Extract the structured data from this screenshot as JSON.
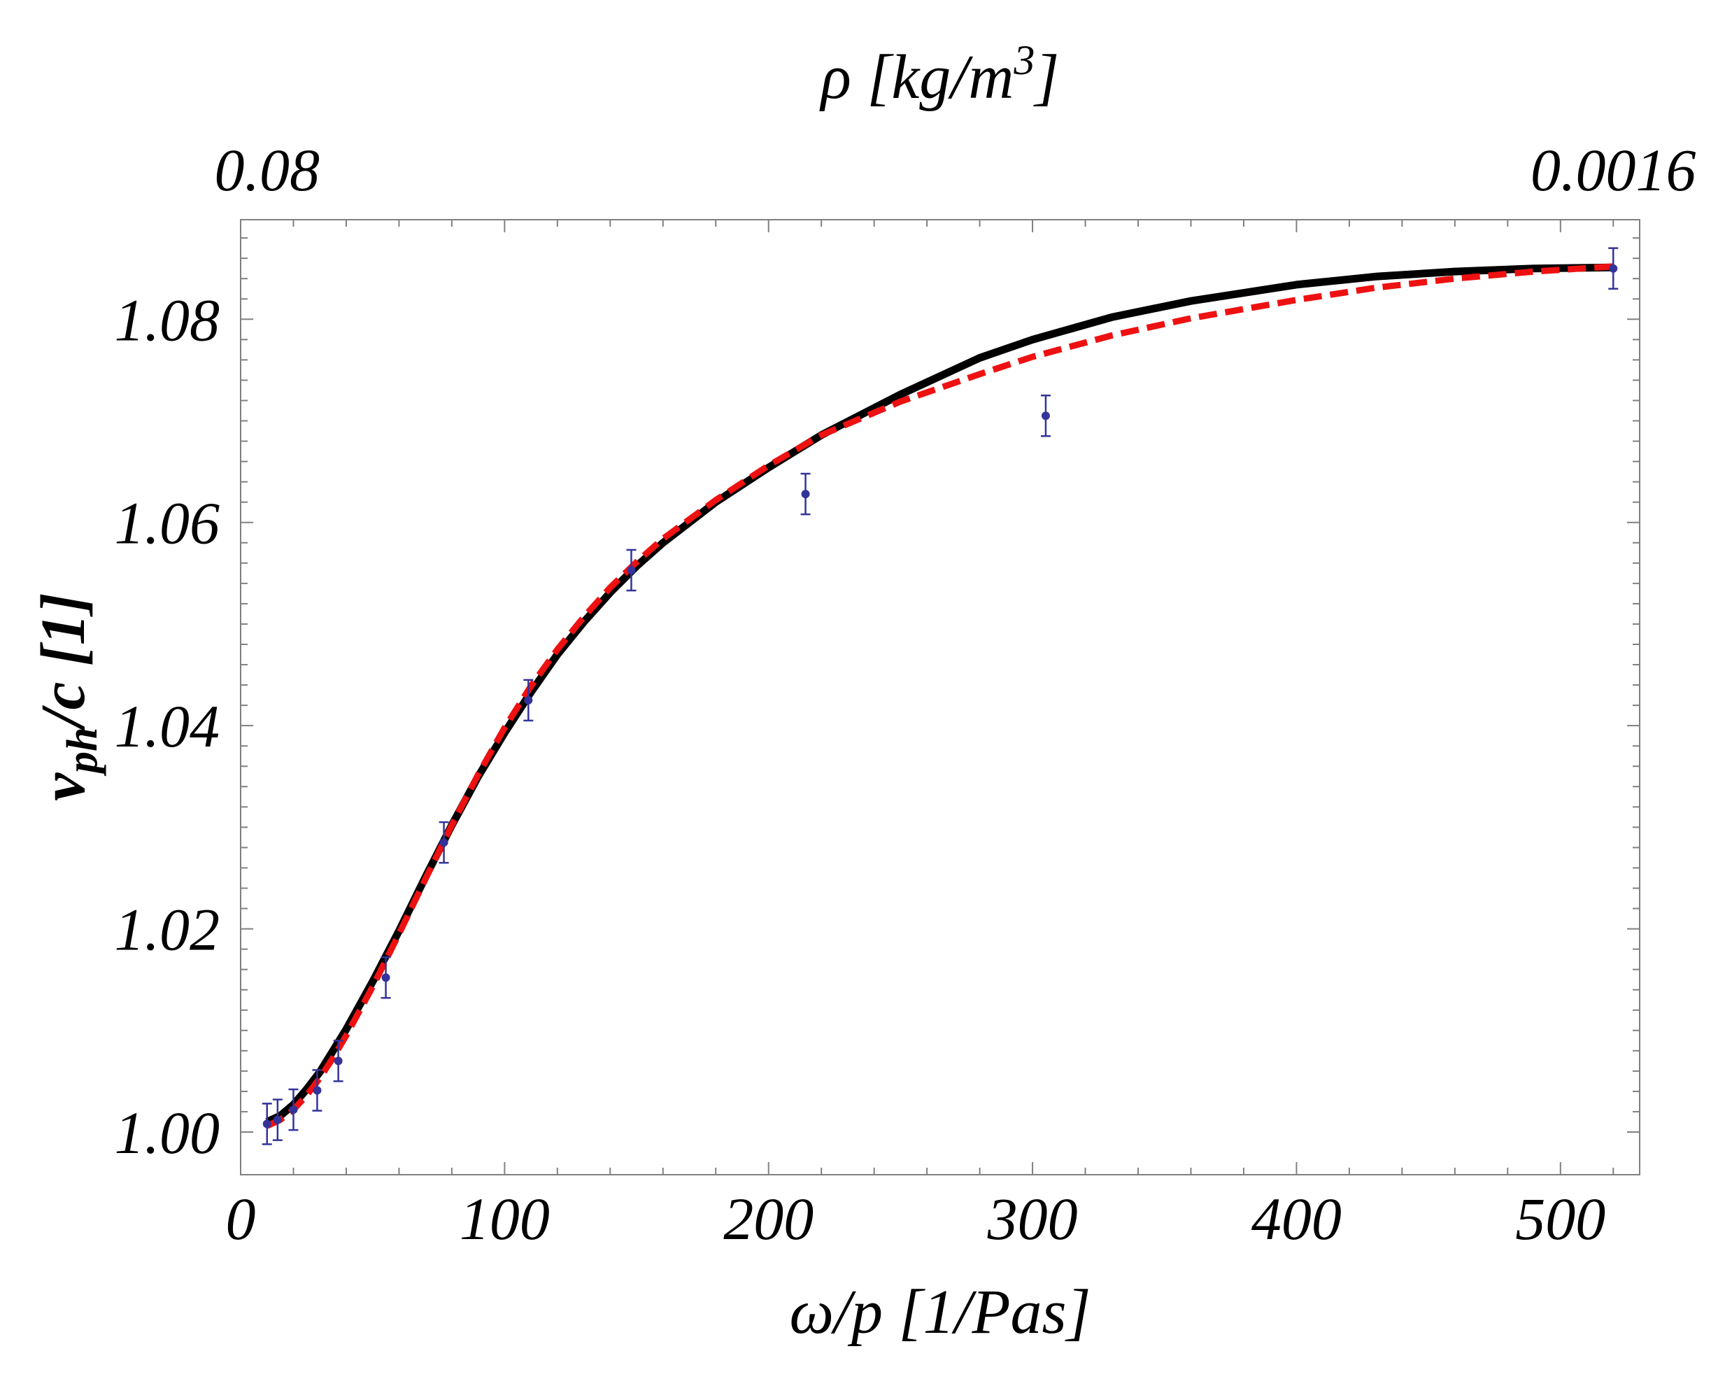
{
  "chart_data": {
    "type": "scatter",
    "title": "",
    "xlabel_prefix": "ω/p ",
    "xlabel_unit": "[1/Pas]",
    "ylabel_main": "v",
    "ylabel_sub": "ph",
    "ylabel_rest": "/c [1]",
    "top_label_prefix": "ρ  [kg/m",
    "top_label_sup": "3",
    "top_label_suffix": "]",
    "xlim": [
      0,
      530
    ],
    "ylim": [
      0.9958,
      1.0898
    ],
    "x_ticks": [
      0,
      100,
      200,
      300,
      400,
      500
    ],
    "x_tick_labels": [
      "0",
      "100",
      "200",
      "300",
      "400",
      "500"
    ],
    "y_ticks": [
      1.0,
      1.02,
      1.04,
      1.06,
      1.08
    ],
    "y_tick_labels": [
      "1.00",
      "1.02",
      "1.04",
      "1.06",
      "1.08"
    ],
    "top_ticks": [
      {
        "x": 10,
        "label": "0.08"
      },
      {
        "x": 520,
        "label": "0.0016"
      }
    ],
    "colors": {
      "points": "#333399",
      "solid": "#000000",
      "dashed": "#ee1111"
    },
    "points": [
      {
        "x": 10,
        "y": 1.0008,
        "err": 0.002
      },
      {
        "x": 14,
        "y": 1.0012,
        "err": 0.002
      },
      {
        "x": 20,
        "y": 1.0022,
        "err": 0.002
      },
      {
        "x": 29,
        "y": 1.0041,
        "err": 0.002
      },
      {
        "x": 37,
        "y": 1.007,
        "err": 0.002
      },
      {
        "x": 55,
        "y": 1.0152,
        "err": 0.002
      },
      {
        "x": 77,
        "y": 1.0285,
        "err": 0.002
      },
      {
        "x": 109,
        "y": 1.0425,
        "err": 0.002
      },
      {
        "x": 148,
        "y": 1.0553,
        "err": 0.002
      },
      {
        "x": 214,
        "y": 1.0628,
        "err": 0.002
      },
      {
        "x": 305,
        "y": 1.0705,
        "err": 0.002
      },
      {
        "x": 520,
        "y": 1.085,
        "err": 0.002
      }
    ],
    "series": [
      {
        "name": "solid",
        "style": "solid",
        "x": [
          10,
          15,
          20,
          25,
          30,
          35,
          40,
          50,
          60,
          70,
          80,
          90,
          100,
          110,
          120,
          130,
          140,
          150,
          160,
          180,
          200,
          220,
          250,
          280,
          300,
          330,
          360,
          400,
          430,
          460,
          490,
          520
        ],
        "y": [
          1.001,
          1.0016,
          1.0027,
          1.0042,
          1.0059,
          1.008,
          1.0101,
          1.0148,
          1.0198,
          1.0251,
          1.0302,
          1.035,
          1.0393,
          1.0433,
          1.047,
          1.0502,
          1.0531,
          1.0557,
          1.058,
          1.062,
          1.0654,
          1.0686,
          1.0726,
          1.0762,
          1.078,
          1.0802,
          1.0818,
          1.0834,
          1.0842,
          1.0847,
          1.085,
          1.0851
        ]
      },
      {
        "name": "dashed",
        "style": "dashed",
        "x": [
          10,
          15,
          20,
          25,
          30,
          35,
          40,
          50,
          60,
          70,
          80,
          90,
          100,
          110,
          120,
          130,
          140,
          150,
          160,
          180,
          200,
          220,
          250,
          280,
          300,
          330,
          360,
          400,
          430,
          460,
          490,
          520
        ],
        "y": [
          1.0006,
          1.0012,
          1.0022,
          1.0036,
          1.0053,
          1.0073,
          1.0095,
          1.0143,
          1.0195,
          1.0249,
          1.0302,
          1.0352,
          1.0398,
          1.0439,
          1.0475,
          1.0507,
          1.0536,
          1.0561,
          1.0584,
          1.0622,
          1.0656,
          1.0686,
          1.0719,
          1.0746,
          1.0763,
          1.0784,
          1.0801,
          1.0819,
          1.0831,
          1.084,
          1.0847,
          1.0852
        ]
      }
    ]
  }
}
